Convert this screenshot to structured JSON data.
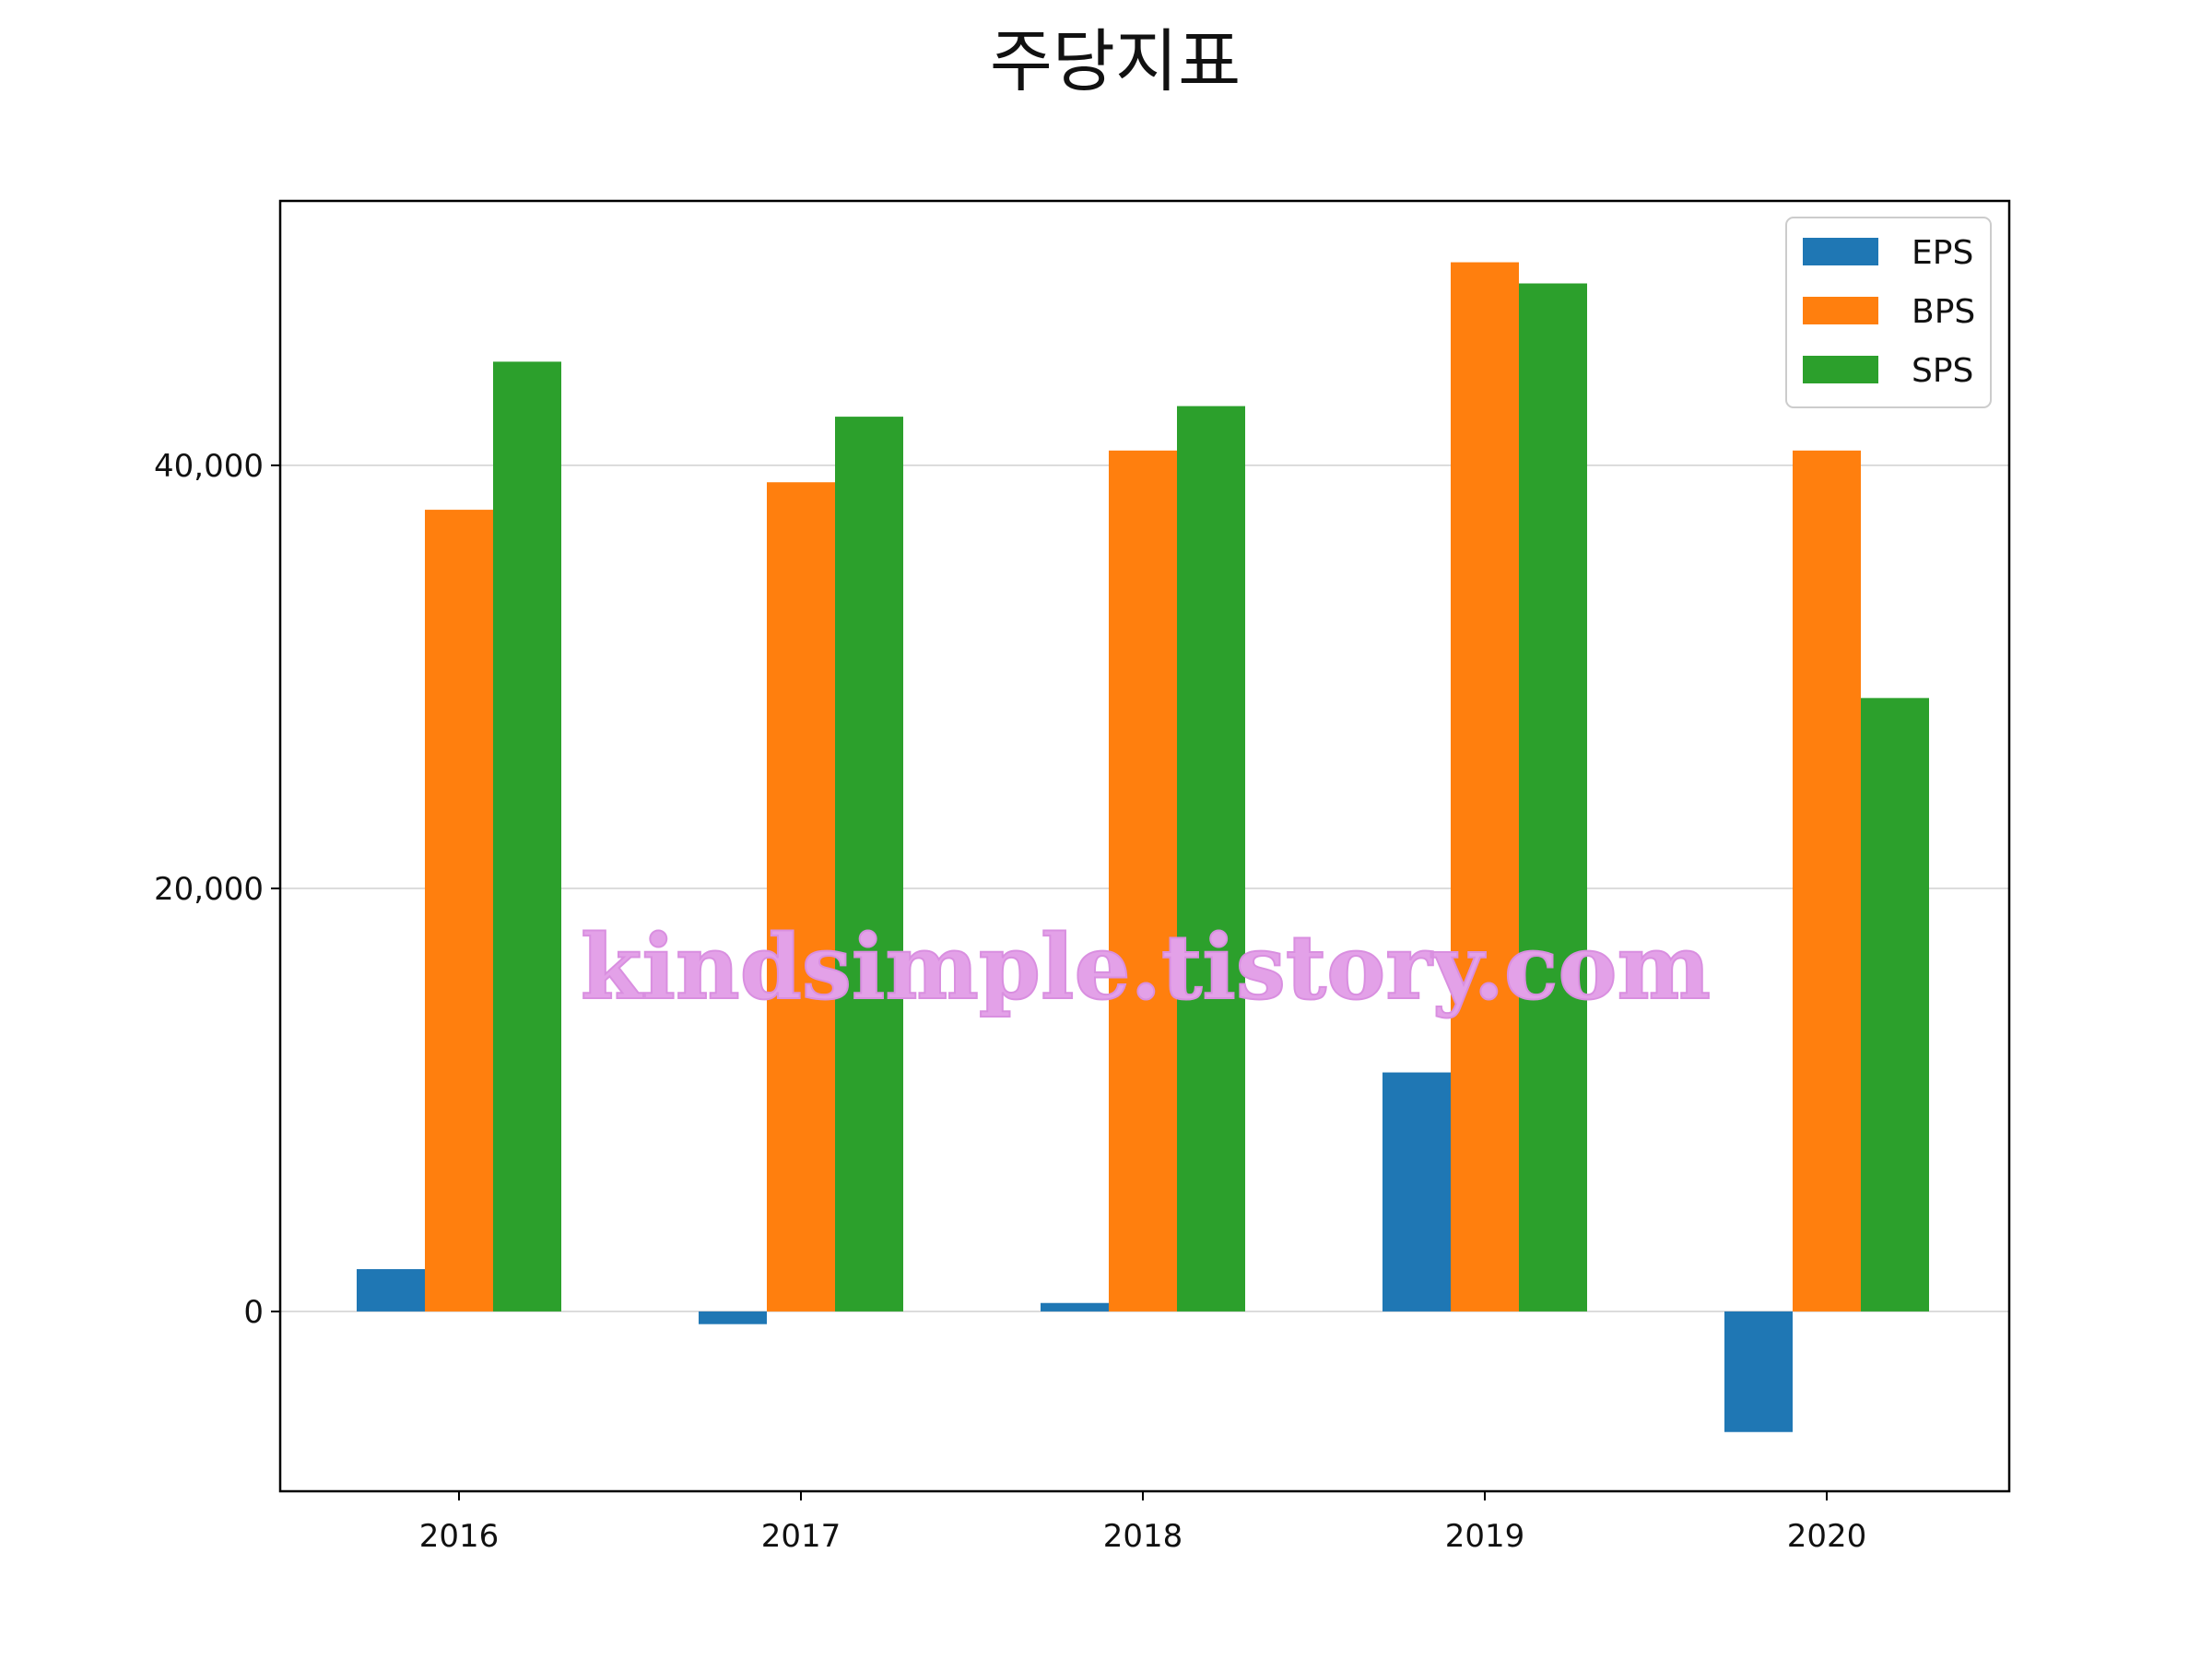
{
  "chart_data": {
    "type": "bar",
    "title": "주당지표",
    "xlabel": "",
    "ylabel": "",
    "categories": [
      "2016",
      "2017",
      "2018",
      "2019",
      "2020"
    ],
    "series": [
      {
        "name": "EPS",
        "color": "#1f77b4",
        "values": [
          2000,
          -600,
          400,
          11300,
          -5700
        ]
      },
      {
        "name": "BPS",
        "color": "#ff7f0e",
        "values": [
          37900,
          39200,
          40700,
          49600,
          40700
        ]
      },
      {
        "name": "SPS",
        "color": "#2ca02c",
        "values": [
          44900,
          42300,
          42800,
          48600,
          29000
        ]
      }
    ],
    "ylim": [
      -8500,
      52500
    ],
    "yticks": [
      0,
      20000,
      40000
    ],
    "ytick_labels": [
      "0",
      "20,000",
      "40,000"
    ],
    "grid": "y-major",
    "legend_position": "top-right"
  },
  "watermark": "kindsimple.tistory.com"
}
